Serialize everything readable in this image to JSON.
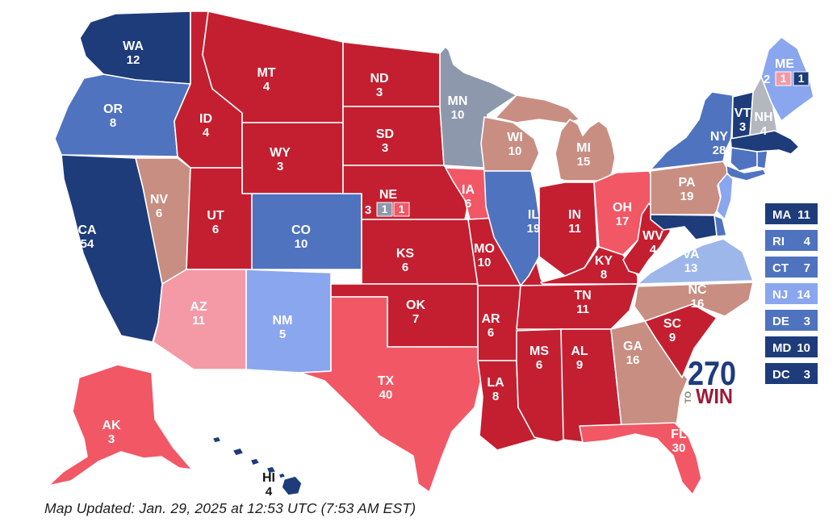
{
  "colors": {
    "dem-safe": "#1e3c7a",
    "dem-likely": "#4f73bf",
    "dem-lean": "#8aa6ef",
    "dem-lean-light": "#9db7ea",
    "tilt-dem": "#8d98ac",
    "tossup-gray": "#b4b7bf",
    "tilt-rep": "#c88e82",
    "lean-rep": "#f49aa7",
    "likely-rep": "#f25766",
    "safe-rep": "#c41f30",
    "border": "#ffffff",
    "label": "#ffffff",
    "label_dark": "#111111"
  },
  "map": {
    "states": [
      {
        "abbr": "WA",
        "ev": "12",
        "category": "dem-safe"
      },
      {
        "abbr": "OR",
        "ev": "8",
        "category": "dem-likely"
      },
      {
        "abbr": "CA",
        "ev": "54",
        "category": "dem-safe"
      },
      {
        "abbr": "NV",
        "ev": "6",
        "category": "tilt-rep"
      },
      {
        "abbr": "ID",
        "ev": "4",
        "category": "safe-rep"
      },
      {
        "abbr": "MT",
        "ev": "4",
        "category": "safe-rep"
      },
      {
        "abbr": "WY",
        "ev": "3",
        "category": "safe-rep"
      },
      {
        "abbr": "UT",
        "ev": "6",
        "category": "safe-rep"
      },
      {
        "abbr": "CO",
        "ev": "10",
        "category": "dem-likely"
      },
      {
        "abbr": "AZ",
        "ev": "11",
        "category": "lean-rep"
      },
      {
        "abbr": "NM",
        "ev": "5",
        "category": "dem-lean"
      },
      {
        "abbr": "ND",
        "ev": "3",
        "category": "safe-rep"
      },
      {
        "abbr": "SD",
        "ev": "3",
        "category": "safe-rep"
      },
      {
        "abbr": "NE",
        "ev": "3",
        "category": "safe-rep"
      },
      {
        "abbr": "KS",
        "ev": "6",
        "category": "safe-rep"
      },
      {
        "abbr": "OK",
        "ev": "7",
        "category": "safe-rep"
      },
      {
        "abbr": "TX",
        "ev": "40",
        "category": "likely-rep"
      },
      {
        "abbr": "MN",
        "ev": "10",
        "category": "tilt-dem"
      },
      {
        "abbr": "IA",
        "ev": "6",
        "category": "likely-rep"
      },
      {
        "abbr": "MO",
        "ev": "10",
        "category": "safe-rep"
      },
      {
        "abbr": "AR",
        "ev": "6",
        "category": "safe-rep"
      },
      {
        "abbr": "LA",
        "ev": "8",
        "category": "safe-rep"
      },
      {
        "abbr": "WI",
        "ev": "10",
        "category": "tilt-rep"
      },
      {
        "abbr": "MI",
        "ev": "15",
        "category": "tilt-rep"
      },
      {
        "abbr": "IL",
        "ev": "19",
        "category": "dem-likely"
      },
      {
        "abbr": "IN",
        "ev": "11",
        "category": "safe-rep"
      },
      {
        "abbr": "OH",
        "ev": "17",
        "category": "likely-rep"
      },
      {
        "abbr": "KY",
        "ev": "8",
        "category": "safe-rep"
      },
      {
        "abbr": "TN",
        "ev": "11",
        "category": "safe-rep"
      },
      {
        "abbr": "MS",
        "ev": "6",
        "category": "safe-rep"
      },
      {
        "abbr": "AL",
        "ev": "9",
        "category": "safe-rep"
      },
      {
        "abbr": "GA",
        "ev": "16",
        "category": "tilt-rep"
      },
      {
        "abbr": "SC",
        "ev": "9",
        "category": "safe-rep"
      },
      {
        "abbr": "NC",
        "ev": "16",
        "category": "tilt-rep"
      },
      {
        "abbr": "VA",
        "ev": "13",
        "category": "dem-lean-light"
      },
      {
        "abbr": "WV",
        "ev": "4",
        "category": "safe-rep"
      },
      {
        "abbr": "PA",
        "ev": "19",
        "category": "tilt-rep"
      },
      {
        "abbr": "NY",
        "ev": "28",
        "category": "dem-likely"
      },
      {
        "abbr": "NJ",
        "ev": "14",
        "category": "dem-lean"
      },
      {
        "abbr": "DE",
        "ev": "3",
        "category": "dem-likely"
      },
      {
        "abbr": "MD",
        "ev": "10",
        "category": "dem-safe"
      },
      {
        "abbr": "VT",
        "ev": "3",
        "category": "dem-safe"
      },
      {
        "abbr": "NH",
        "ev": "4",
        "category": "tossup-gray"
      },
      {
        "abbr": "ME",
        "ev": "2",
        "category": "dem-lean"
      },
      {
        "abbr": "MA",
        "ev": "11",
        "category": "dem-safe"
      },
      {
        "abbr": "CT",
        "ev": "7",
        "category": "dem-likely"
      },
      {
        "abbr": "RI",
        "ev": "4",
        "category": "dem-likely"
      },
      {
        "abbr": "FL",
        "ev": "30",
        "category": "likely-rep"
      },
      {
        "abbr": "AK",
        "ev": "3",
        "category": "likely-rep"
      },
      {
        "abbr": "HI",
        "ev": "4",
        "category": "dem-safe",
        "dark_label": true
      }
    ],
    "splits": {
      "NE": {
        "districts": [
          {
            "value": "1",
            "category": "tilt-dem"
          },
          {
            "value": "1",
            "category": "likely-rep"
          }
        ]
      },
      "ME": {
        "districts": [
          {
            "value": "1",
            "category": "lean-rep"
          },
          {
            "value": "1",
            "category": "dem-safe"
          }
        ]
      }
    }
  },
  "legend": [
    {
      "abbr": "MA",
      "ev": "11",
      "category": "dem-safe"
    },
    {
      "abbr": "RI",
      "ev": "4",
      "category": "dem-likely"
    },
    {
      "abbr": "CT",
      "ev": "7",
      "category": "dem-likely"
    },
    {
      "abbr": "NJ",
      "ev": "14",
      "category": "dem-lean"
    },
    {
      "abbr": "DE",
      "ev": "3",
      "category": "dem-likely"
    },
    {
      "abbr": "MD",
      "ev": "10",
      "category": "dem-safe"
    },
    {
      "abbr": "DC",
      "ev": "3",
      "category": "dem-safe"
    }
  ],
  "logo": {
    "number": "270",
    "to": "TO",
    "win": "WIN",
    "number_color": "#1e3c7a",
    "to_color": "#8b8477",
    "win_color": "#9b1b37"
  },
  "footer": {
    "text": "Map Updated: Jan. 29, 2025 at 12:53 UTC (7:53 AM EST)"
  }
}
